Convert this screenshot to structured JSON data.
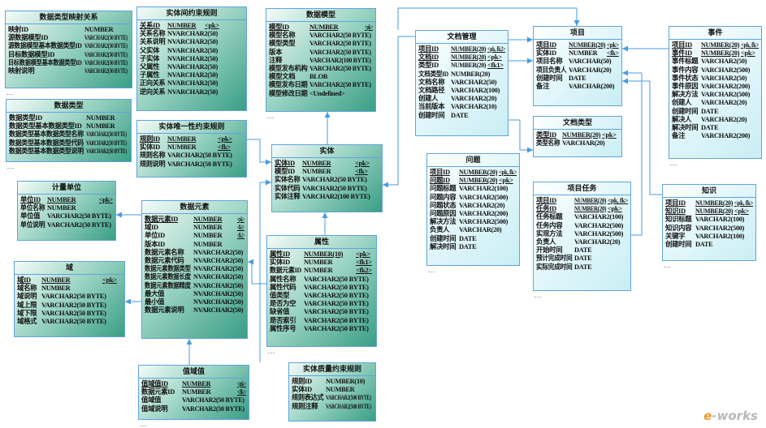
{
  "diagram_type": "entity-relationship",
  "colors": {
    "border": "#5fa4dc",
    "connector": "#4a9be0",
    "teal_fill": "#3a9e86",
    "cyan_fill": "#c9eef5"
  },
  "tables": [
    {
      "id": "t1",
      "title": "数据类型映射关系",
      "style": "teal",
      "ellipsis": true,
      "columns": [
        [
          "映射ID",
          "NUMBER",
          ""
        ],
        [
          "源数据模型ID",
          "VARCHAR2(50 BYTE)",
          ""
        ],
        [
          "源数据模型基本数据类型ID",
          "VARCHAR2(50 BYTE)",
          ""
        ],
        [
          "目标数据模型ID",
          "VARCHAR2(50 BYTE)",
          ""
        ],
        [
          "目标数据模型基本数据类型ID",
          "VARCHAR2(50 BYTE)",
          ""
        ],
        [
          "映射说明",
          "VARCHAR2(50 BYTE)",
          ""
        ]
      ]
    },
    {
      "id": "t2",
      "title": "数据类型",
      "style": "teal",
      "ellipsis": true,
      "columns": [
        [
          "数据类型ID",
          "NUMBER",
          ""
        ],
        [
          "数据类型基本数据类型ID",
          "NUMBER",
          ""
        ],
        [
          "数据类型基本数据类型名称",
          "VARCHAR2(50 BYTE)",
          ""
        ],
        [
          "数据类型基本数据类型代码",
          "VARCHAR2(50 BYTE)",
          ""
        ],
        [
          "数据类型基本数据类型说明",
          "VARCHAR2(50 BYTE)",
          ""
        ]
      ]
    },
    {
      "id": "t3",
      "title": "实体间约束规则",
      "style": "teal",
      "ellipsis": false,
      "columns": [
        [
          "关系ID",
          "NUMBER",
          "<pk>"
        ],
        [
          "关系名称",
          "NVARCHAR2(50)",
          ""
        ],
        [
          "关系说明",
          "NVARCHAR2(50)",
          ""
        ],
        [
          "父实体",
          "NVARCHAR2(50)",
          ""
        ],
        [
          "子实体",
          "NVARCHAR2(50)",
          ""
        ],
        [
          "父属性",
          "NVARCHAR2(50)",
          ""
        ],
        [
          "子属性",
          "NVARCHAR2(50)",
          ""
        ],
        [
          "正向关系",
          "NVARCHAR2(50)",
          ""
        ],
        [
          "逆向关系",
          "NVARCHAR2(50)",
          ""
        ]
      ]
    },
    {
      "id": "t4",
      "title": "实体唯一性约束规则",
      "style": "teal",
      "ellipsis": false,
      "columns": [
        [
          "规则ID",
          "NUMBER",
          "<pk>"
        ],
        [
          "实体ID",
          "NUMBER",
          "<fk>"
        ],
        [
          "规则名称",
          "VARCHAR2(50 BYTE)",
          ""
        ],
        [
          "规则说明",
          "VARCHAR2(50 BYTE)",
          ""
        ]
      ]
    },
    {
      "id": "t5",
      "title": "数据模型",
      "style": "teal",
      "ellipsis": true,
      "columns": [
        [
          "模型ID",
          "NUMBER",
          "<pk>"
        ],
        [
          "模型名称",
          "VARCHAR2(50 BYTE)",
          ""
        ],
        [
          "模型类型",
          "VARCHAR2(50 BYTE)",
          ""
        ],
        [
          "版本",
          "VARCHAR2(50 BYTE)",
          ""
        ],
        [
          "注释",
          "VARCHAR2(100 BYTE)",
          ""
        ],
        [
          "模型发布机构",
          "VARCHAR2(50 BYTE)",
          ""
        ],
        [
          "模型文档",
          "BLOB",
          ""
        ],
        [
          "模型发布日期",
          "VARCHAR2(50 BYTE)",
          ""
        ],
        [
          "模型修改日期",
          "<Undefined>",
          ""
        ]
      ]
    },
    {
      "id": "t6",
      "title": "实体",
      "style": "teal",
      "ellipsis": false,
      "columns": [
        [
          "实体ID",
          "NUMBER",
          "<pk>"
        ],
        [
          "模型ID",
          "NUMBER",
          "<fk>"
        ],
        [
          "实体名称",
          "VARCHAR2(50 BYTE)",
          ""
        ],
        [
          "实体代码",
          "VARCHAR2(50 BYTE)",
          ""
        ],
        [
          "实体注释",
          "VARCHAR2(100 BYTE)",
          ""
        ]
      ]
    },
    {
      "id": "t7",
      "title": "属性",
      "style": "teal",
      "ellipsis": true,
      "columns": [
        [
          "属性ID",
          "NUMBER(10)",
          "<pk>"
        ],
        [
          "实体ID",
          "NUMBER",
          "<fk1>"
        ],
        [
          "数据元素ID",
          "NUMBER",
          "<fk2>"
        ],
        [
          "属性名称",
          "VARCHAR2(50 BYTE)",
          ""
        ],
        [
          "属性代码",
          "VARCHAR2(50 BYTE)",
          ""
        ],
        [
          "值类型",
          "VARCHAR2(50 BYTE)",
          ""
        ],
        [
          "是否为空",
          "VARCHAR2(50 BYTE)",
          ""
        ],
        [
          "缺省值",
          "VARCHAR2(50 BYTE)",
          ""
        ],
        [
          "是否索引",
          "VARCHAR2(50 BYTE)",
          ""
        ],
        [
          "属性序号",
          "VARCHAR2(50 BYTE)",
          ""
        ]
      ]
    },
    {
      "id": "t8",
      "title": "实体质量约束规则",
      "style": "teal",
      "ellipsis": false,
      "columns": [
        [
          "规则ID",
          "NUMBER(10)",
          ""
        ],
        [
          "实体ID",
          "NUMBER",
          ""
        ],
        [
          "规则表达式",
          "VARCHAR2(500 BYTE)",
          ""
        ],
        [
          "规则注释",
          "VARCHAR2(500 BYTE)",
          ""
        ]
      ]
    },
    {
      "id": "t9",
      "title": "数据元素",
      "style": "teal",
      "ellipsis": false,
      "columns": [
        [
          "数据元素ID",
          "NUMBER",
          "<pk>"
        ],
        [
          "域ID",
          "NUMBER",
          "<fk1>"
        ],
        [
          "单位ID",
          "NUMBER",
          "<fk2>"
        ],
        [
          "版本ID",
          "NUMBER",
          ""
        ],
        [
          "数据元素名称",
          "NVARCHAR2(50)",
          ""
        ],
        [
          "数据元素代码",
          "NVARCHAR2(50)",
          ""
        ],
        [
          "数据元素数据类型",
          "NVARCHAR2(50)",
          ""
        ],
        [
          "数据元素数据长度",
          "NVARCHAR2(50)",
          ""
        ],
        [
          "数据元素数据精度",
          "NVARCHAR2(50)",
          ""
        ],
        [
          "最大值",
          "NVARCHAR2(50)",
          ""
        ],
        [
          "最小值",
          "NVARCHAR2(50)",
          ""
        ],
        [
          "数据元素说明",
          "NVARCHAR2(50)",
          ""
        ]
      ]
    },
    {
      "id": "t10",
      "title": "计量单位",
      "style": "teal",
      "ellipsis": false,
      "columns": [
        [
          "单位ID",
          "NUMBER",
          "<pk>"
        ],
        [
          "单位名称",
          "NUMBER",
          ""
        ],
        [
          "单位值",
          "VARCHAR2(50 BYTE)",
          ""
        ],
        [
          "单位说明",
          "VARCHAR2(50 BYTE)",
          ""
        ]
      ]
    },
    {
      "id": "t11",
      "title": "域",
      "style": "teal",
      "ellipsis": false,
      "columns": [
        [
          "域ID",
          "NUMBER",
          "<pk>"
        ],
        [
          "域名称",
          "NUMBER",
          ""
        ],
        [
          "域说明",
          "VARCHAR2(50 BYTE)",
          ""
        ],
        [
          "域上限",
          "VARCHAR2(50 BYTE)",
          ""
        ],
        [
          "域下限",
          "VARCHAR2(50 BYTE)",
          ""
        ],
        [
          "域格式",
          "VARCHAR2(50 BYTE)",
          ""
        ]
      ]
    },
    {
      "id": "t12",
      "title": "值域值",
      "style": "teal",
      "ellipsis": true,
      "columns": [
        [
          "值域值ID",
          "NUMBER",
          "<pk>"
        ],
        [
          "数据元素ID",
          "NUMBER",
          "<fk>"
        ],
        [
          "值域值",
          "VARCHAR2(50 BYTE)",
          ""
        ],
        [
          "值域说明",
          "VARCHAR2(50 BYTE)",
          ""
        ]
      ]
    },
    {
      "id": "t13",
      "title": "文档管理",
      "style": "cyan",
      "ellipsis": false,
      "columns": [
        [
          "项目ID",
          "NUMBER(20)",
          "<pk, fk2>"
        ],
        [
          "文档ID",
          "NUMBER(20)",
          "<pk>"
        ],
        [
          "类型ID",
          "NUMBER(20)",
          "<fk1>"
        ],
        [
          "文档类型ID",
          "NUMBER(20)",
          ""
        ],
        [
          "文档名称",
          "VARCHAR2(50)",
          ""
        ],
        [
          "文档路径",
          "VARCHAR2(100)",
          ""
        ],
        [
          "创建人",
          "VARCHAR2(20)",
          ""
        ],
        [
          "当前版本",
          "VARCHAR2(10)",
          ""
        ],
        [
          "创建时间",
          "DATE",
          ""
        ]
      ]
    },
    {
      "id": "t14",
      "title": "问题",
      "style": "cyan",
      "ellipsis": true,
      "columns": [
        [
          "项目ID",
          "NUMBER(20)",
          "<pk, fk>"
        ],
        [
          "问题ID",
          "NUMBER(20)",
          "<pk>"
        ],
        [
          "问题标题",
          "VARCHAR2(100)",
          ""
        ],
        [
          "问题内容",
          "VARCHAR2(500)",
          ""
        ],
        [
          "问题状态",
          "VARCHAR2(20)",
          ""
        ],
        [
          "问题原因",
          "VARCHAR2(200)",
          ""
        ],
        [
          "解决方法",
          "VARCHAR2(500)",
          ""
        ],
        [
          "负责人",
          "VARCHAR(20)",
          ""
        ],
        [
          "创建时间",
          "DATE",
          ""
        ],
        [
          "解决时间",
          "DATE",
          ""
        ]
      ]
    },
    {
      "id": "t15",
      "title": "项目",
      "style": "cyan",
      "ellipsis": false,
      "columns": [
        [
          "项目ID",
          "NUMBER(20)",
          "<pk>"
        ],
        [
          "实体ID",
          "NUMBER",
          "<fk>"
        ],
        [
          "项目名称",
          "VARCHAR(50)",
          ""
        ],
        [
          "项目负责人",
          "VARCHAR(20)",
          ""
        ],
        [
          "创建时间",
          "DATE",
          ""
        ],
        [
          "备注",
          "VARCHAR(200)",
          ""
        ]
      ]
    },
    {
      "id": "t16",
      "title": "文档类型",
      "style": "cyan",
      "ellipsis": false,
      "columns": [
        [
          "类型ID",
          "NUMBER(20)",
          "<pk>"
        ],
        [
          "类型名称",
          "VARCHAR(20)",
          ""
        ]
      ]
    },
    {
      "id": "t17",
      "title": "项目任务",
      "style": "cyan",
      "ellipsis": true,
      "columns": [
        [
          "项目ID",
          "NUMBER(20)",
          "<pk, fk>"
        ],
        [
          "任务ID",
          "NUMBER(20)",
          "<pk>"
        ],
        [
          "任务标题",
          "VARCHAR2(100)",
          ""
        ],
        [
          "任务内容",
          "VARCHAR2(500)",
          ""
        ],
        [
          "实现方法",
          "VARCHAR2(500)",
          ""
        ],
        [
          "负责人",
          "VARCHAR2(20)",
          ""
        ],
        [
          "开始时间",
          "DATE",
          ""
        ],
        [
          "预计完成时间",
          "DATE",
          ""
        ],
        [
          "实际完成时间",
          "DATE",
          ""
        ]
      ]
    },
    {
      "id": "t18",
      "title": "事件",
      "style": "cyan",
      "ellipsis": true,
      "columns": [
        [
          "项目ID",
          "NUMBER(20)",
          "<pk, fk>"
        ],
        [
          "事件ID",
          "NUMBER(20)",
          "<pk>"
        ],
        [
          "事件标题",
          "VARCHAR2(50)",
          ""
        ],
        [
          "事件内容",
          "VARCHAR2(500)",
          ""
        ],
        [
          "事件状态",
          "VARCHAR2(50)",
          ""
        ],
        [
          "事件原因",
          "VARCHAR2(200)",
          ""
        ],
        [
          "解决方法",
          "VARCHAR2(500)",
          ""
        ],
        [
          "创建人",
          "VARCHAR2(20)",
          ""
        ],
        [
          "创建时间",
          "DATE",
          ""
        ],
        [
          "解决人",
          "VARCHAR2(20)",
          ""
        ],
        [
          "解决时间",
          "DATE",
          ""
        ],
        [
          "备注",
          "VARCHAR2(200)",
          ""
        ]
      ]
    },
    {
      "id": "t19",
      "title": "知识",
      "style": "cyan",
      "ellipsis": true,
      "columns": [
        [
          "项目ID",
          "NUMBER(20)",
          "<pk, fk>"
        ],
        [
          "知识ID",
          "NUMBER(20)",
          "<pk>"
        ],
        [
          "知识标题",
          "VARCHAR2(100)",
          ""
        ],
        [
          "知识内容",
          "VARCHAR2(500)",
          ""
        ],
        [
          "关键字",
          "VARCHAR2(100)",
          ""
        ],
        [
          "创建时间",
          "DATE",
          ""
        ]
      ]
    }
  ],
  "ellipsis_text": "...",
  "logo": {
    "prefix": "e",
    "rest": "-works"
  }
}
